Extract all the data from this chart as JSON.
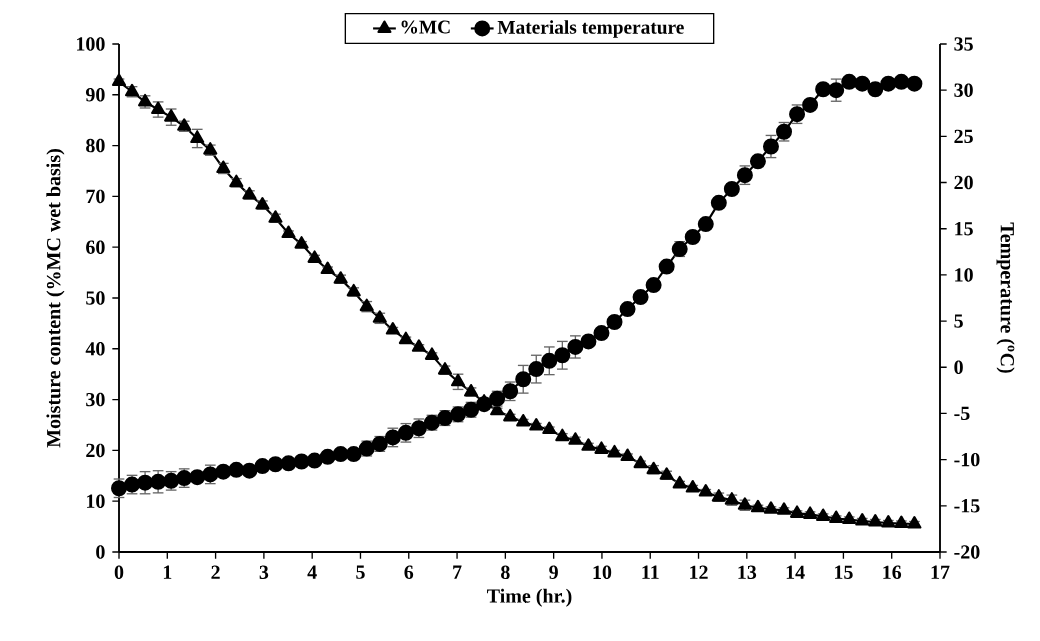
{
  "chart_data": {
    "type": "line",
    "xlabel": "Time (hr.)",
    "ylabel": "Moisture content (%MC wet basis)",
    "y2label": "Temperature ($^{o}$C)",
    "legend": "top",
    "line_style": "solid",
    "xlim": [
      0,
      17
    ],
    "xticks": [
      0,
      1,
      2,
      3,
      4,
      5,
      6,
      7,
      8,
      9,
      10,
      11,
      12,
      13,
      14,
      15,
      16,
      17
    ],
    "ylim": [
      0,
      100
    ],
    "yticks": [
      0,
      10,
      20,
      30,
      40,
      50,
      60,
      70,
      80,
      90,
      100
    ],
    "y2lim": [
      -20,
      35
    ],
    "y2ticks": [
      -20,
      -15,
      -10,
      -5,
      0,
      5,
      10,
      15,
      20,
      25,
      30,
      35
    ],
    "x": [
      0,
      0.27,
      0.54,
      0.81,
      1.08,
      1.35,
      1.62,
      1.89,
      2.16,
      2.43,
      2.7,
      2.97,
      3.24,
      3.51,
      3.78,
      4.05,
      4.32,
      4.59,
      4.86,
      5.13,
      5.4,
      5.67,
      5.94,
      6.21,
      6.48,
      6.75,
      7.02,
      7.29,
      7.56,
      7.83,
      8.1,
      8.37,
      8.64,
      8.91,
      9.18,
      9.45,
      9.72,
      9.99,
      10.26,
      10.53,
      10.8,
      11.07,
      11.34,
      11.61,
      11.88,
      12.15,
      12.42,
      12.69,
      12.96,
      13.23,
      13.5,
      13.77,
      14.04,
      14.31,
      14.58,
      14.85,
      15.12,
      15.39,
      15.66,
      15.93,
      16.2,
      16.47
    ],
    "series": [
      {
        "name": "%MC",
        "color": "#000000",
        "marker": "triangle",
        "values": [
          92.6,
          90.6,
          88.6,
          87.1,
          85.6,
          83.8,
          81.4,
          79.1,
          75.5,
          72.7,
          70.3,
          68.3,
          65.7,
          62.7,
          60.6,
          57.8,
          55.6,
          53.7,
          51.2,
          48.3,
          46.0,
          43.7,
          41.8,
          40.3,
          38.7,
          35.8,
          33.5,
          31.5,
          29.5,
          27.8,
          26.6,
          25.6,
          24.8,
          24.1,
          22.7,
          22.0,
          20.8,
          20.2,
          19.5,
          18.8,
          17.4,
          16.2,
          15.1,
          13.4,
          12.6,
          11.8,
          10.8,
          10.2,
          9.2,
          8.7,
          8.4,
          8.2,
          7.6,
          7.4,
          7.0,
          6.6,
          6.4,
          6.1,
          5.9,
          5.7,
          5.6,
          5.5
        ],
        "errors": [
          0.5,
          1.0,
          1.2,
          1.5,
          1.6,
          1.0,
          1.8,
          1.0,
          1.0,
          0.8,
          0.8,
          0.8,
          0.8,
          0.5,
          0.5,
          0.6,
          0.5,
          0.8,
          0.8,
          1.0,
          1.0,
          0.5,
          0.5,
          0.5,
          0.5,
          0.8,
          1.5,
          0.8,
          0.8,
          0.5,
          0.5,
          0.5,
          0.5,
          0.5,
          0.6,
          0.6,
          0.6,
          0.6,
          0.5,
          0.5,
          0.5,
          0.8,
          0.8,
          0.5,
          0.5,
          0.5,
          0.8,
          1.0,
          1.0,
          0.5,
          0.5,
          0.5,
          0.5,
          0.5,
          0.5,
          0.5,
          0.5,
          0.5,
          0.5,
          0.5,
          0.5,
          0.5
        ]
      },
      {
        "name": "Materials temperature",
        "color": "#000000",
        "marker": "circle",
        "axis": "y2",
        "values": [
          -13.1,
          -12.7,
          -12.5,
          -12.4,
          -12.3,
          -12.0,
          -11.9,
          -11.6,
          -11.3,
          -11.1,
          -11.2,
          -10.7,
          -10.5,
          -10.4,
          -10.2,
          -10.1,
          -9.7,
          -9.4,
          -9.4,
          -8.8,
          -8.3,
          -7.6,
          -7.1,
          -6.6,
          -6.0,
          -5.5,
          -5.1,
          -4.6,
          -4.0,
          -3.4,
          -2.6,
          -1.3,
          -0.2,
          0.7,
          1.3,
          2.2,
          2.8,
          3.7,
          4.9,
          6.3,
          7.6,
          8.9,
          10.9,
          12.8,
          14.1,
          15.5,
          17.8,
          19.3,
          20.8,
          22.3,
          23.9,
          25.5,
          27.4,
          28.4,
          30.1,
          30.0,
          30.9,
          30.7,
          30.1,
          30.7,
          30.9,
          30.7
        ],
        "errors": [
          1.0,
          1.0,
          1.2,
          1.2,
          1.0,
          1.0,
          0.5,
          1.0,
          0.5,
          0.5,
          0.5,
          0.5,
          0.5,
          0.5,
          0.5,
          0.5,
          0.5,
          0.5,
          0.5,
          0.8,
          0.8,
          1.0,
          1.0,
          1.0,
          0.8,
          0.8,
          0.8,
          0.8,
          0.5,
          0.8,
          1.0,
          1.5,
          1.5,
          1.5,
          1.5,
          1.2,
          0.5,
          0.5,
          0.5,
          0.5,
          0.5,
          0.5,
          0.5,
          0.8,
          0.5,
          0.5,
          0.5,
          0.5,
          1.0,
          0.5,
          1.2,
          1.0,
          1.0,
          0.5,
          0.5,
          1.2,
          0.5,
          0.5,
          0.5,
          0.5,
          0.5,
          0.5
        ]
      }
    ]
  }
}
